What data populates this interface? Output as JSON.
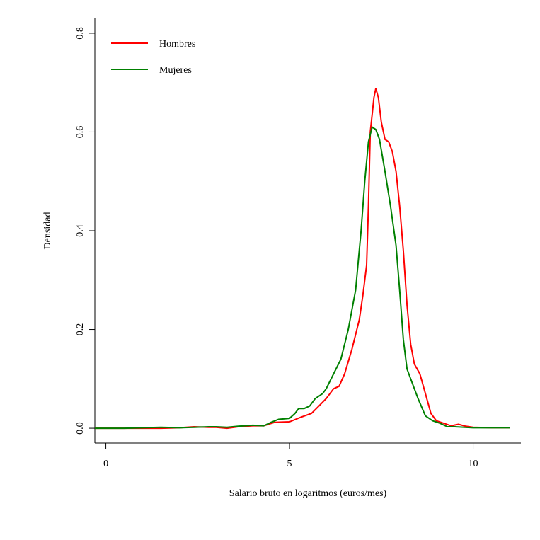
{
  "colors": {
    "hombres": "#ff0000",
    "mujeres": "#008000",
    "axis": "#000000",
    "background": "#ffffff"
  },
  "chart_data": {
    "type": "line",
    "title": "",
    "xlabel": "Salario bruto en logaritmos (euros/mes)",
    "ylabel": "Densidad",
    "xlim": [
      -0.3,
      11.3
    ],
    "ylim": [
      -0.03,
      0.83
    ],
    "x_ticks": [
      0,
      5,
      10
    ],
    "x_tick_labels": [
      "0",
      "5",
      "10"
    ],
    "y_ticks": [
      0.0,
      0.2,
      0.4,
      0.6,
      0.8
    ],
    "y_tick_labels": [
      "0.0",
      "0.2",
      "0.4",
      "0.6",
      "0.8"
    ],
    "grid": false,
    "legend_position": "top-left",
    "series": [
      {
        "name": "Hombres",
        "color": "#ff0000",
        "points": [
          [
            -0.3,
            0.0
          ],
          [
            0.5,
            0.0
          ],
          [
            1.0,
            0.0
          ],
          [
            1.5,
            0.0
          ],
          [
            2.0,
            0.001
          ],
          [
            2.4,
            0.003
          ],
          [
            2.8,
            0.002
          ],
          [
            3.0,
            0.002
          ],
          [
            3.3,
            0.0
          ],
          [
            3.6,
            0.003
          ],
          [
            4.0,
            0.005
          ],
          [
            4.3,
            0.005
          ],
          [
            4.6,
            0.012
          ],
          [
            5.0,
            0.013
          ],
          [
            5.3,
            0.022
          ],
          [
            5.6,
            0.03
          ],
          [
            5.8,
            0.045
          ],
          [
            6.0,
            0.06
          ],
          [
            6.2,
            0.08
          ],
          [
            6.35,
            0.085
          ],
          [
            6.5,
            0.11
          ],
          [
            6.7,
            0.16
          ],
          [
            6.9,
            0.22
          ],
          [
            7.0,
            0.27
          ],
          [
            7.1,
            0.33
          ],
          [
            7.15,
            0.45
          ],
          [
            7.2,
            0.6
          ],
          [
            7.3,
            0.67
          ],
          [
            7.35,
            0.688
          ],
          [
            7.42,
            0.67
          ],
          [
            7.5,
            0.62
          ],
          [
            7.6,
            0.585
          ],
          [
            7.7,
            0.58
          ],
          [
            7.8,
            0.56
          ],
          [
            7.9,
            0.52
          ],
          [
            8.0,
            0.45
          ],
          [
            8.1,
            0.36
          ],
          [
            8.2,
            0.25
          ],
          [
            8.3,
            0.17
          ],
          [
            8.4,
            0.13
          ],
          [
            8.55,
            0.11
          ],
          [
            8.7,
            0.07
          ],
          [
            8.85,
            0.03
          ],
          [
            9.0,
            0.015
          ],
          [
            9.2,
            0.01
          ],
          [
            9.4,
            0.005
          ],
          [
            9.6,
            0.008
          ],
          [
            9.8,
            0.004
          ],
          [
            10.0,
            0.002
          ],
          [
            10.5,
            0.001
          ],
          [
            11.0,
            0.001
          ]
        ]
      },
      {
        "name": "Mujeres",
        "color": "#008000",
        "points": [
          [
            -0.3,
            0.0
          ],
          [
            0.5,
            0.0
          ],
          [
            1.0,
            0.001
          ],
          [
            1.5,
            0.002
          ],
          [
            2.0,
            0.001
          ],
          [
            2.4,
            0.002
          ],
          [
            2.8,
            0.003
          ],
          [
            3.0,
            0.003
          ],
          [
            3.3,
            0.002
          ],
          [
            3.6,
            0.004
          ],
          [
            4.0,
            0.006
          ],
          [
            4.3,
            0.005
          ],
          [
            4.5,
            0.012
          ],
          [
            4.7,
            0.018
          ],
          [
            5.0,
            0.02
          ],
          [
            5.15,
            0.03
          ],
          [
            5.25,
            0.04
          ],
          [
            5.4,
            0.04
          ],
          [
            5.55,
            0.045
          ],
          [
            5.7,
            0.06
          ],
          [
            5.9,
            0.07
          ],
          [
            6.0,
            0.08
          ],
          [
            6.2,
            0.11
          ],
          [
            6.4,
            0.14
          ],
          [
            6.6,
            0.2
          ],
          [
            6.8,
            0.28
          ],
          [
            6.95,
            0.4
          ],
          [
            7.05,
            0.5
          ],
          [
            7.15,
            0.58
          ],
          [
            7.25,
            0.61
          ],
          [
            7.35,
            0.605
          ],
          [
            7.45,
            0.585
          ],
          [
            7.6,
            0.52
          ],
          [
            7.75,
            0.45
          ],
          [
            7.9,
            0.37
          ],
          [
            8.0,
            0.28
          ],
          [
            8.1,
            0.18
          ],
          [
            8.2,
            0.12
          ],
          [
            8.35,
            0.09
          ],
          [
            8.5,
            0.06
          ],
          [
            8.7,
            0.025
          ],
          [
            8.9,
            0.015
          ],
          [
            9.1,
            0.01
          ],
          [
            9.3,
            0.003
          ],
          [
            9.5,
            0.003
          ],
          [
            10.0,
            0.001
          ],
          [
            10.5,
            0.001
          ],
          [
            11.0,
            0.001
          ]
        ]
      }
    ]
  }
}
